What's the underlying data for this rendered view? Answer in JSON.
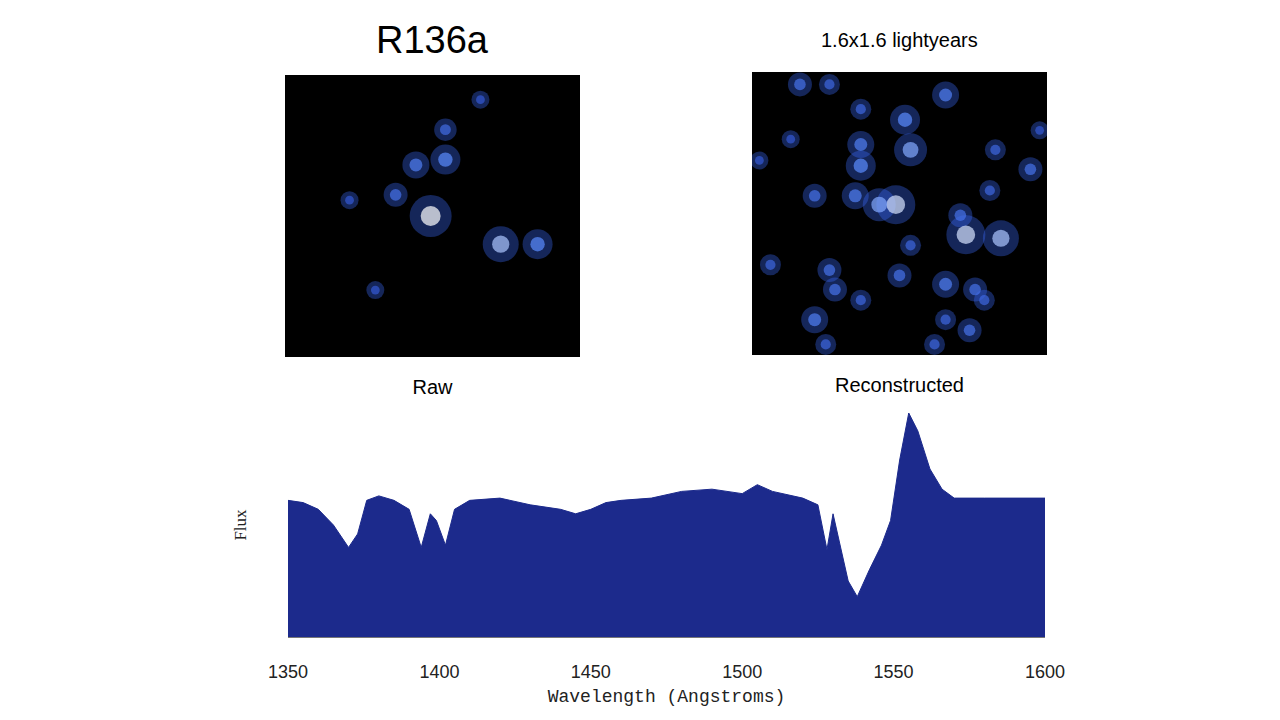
{
  "chart_data": [
    {
      "type": "scatter",
      "title": "R136a",
      "x_label": "Raw",
      "x": [
        0.79,
        0.87,
        0.71,
        1.17,
        1.37,
        0.87,
        0.6,
        0.49,
        1.06,
        0.35
      ],
      "y": [
        0.8,
        1.12,
        1.09,
        0.64,
        0.64,
        1.29,
        0.92,
        0.38,
        1.46,
        0.89
      ],
      "brightness": [
        1.0,
        0.6,
        0.5,
        0.8,
        0.6,
        0.35,
        0.4,
        0.2,
        0.2,
        0.2
      ],
      "color": "#3b6cff",
      "xlim": [
        0,
        1.6
      ],
      "ylim": [
        0,
        1.6
      ],
      "tick_labels": false
    },
    {
      "type": "scatter",
      "title": "1.6x1.6 lightyears",
      "x_label": "Reconstructed",
      "x": [
        0.83,
        1.05,
        0.26,
        0.42,
        0.86,
        0.59,
        0.59,
        0.78,
        0.69,
        0.56,
        0.34,
        1.16,
        1.35,
        1.13,
        1.32,
        1.51,
        1.29,
        0.8,
        1.05,
        1.21,
        1.26,
        0.42,
        0.45,
        0.34,
        0.4,
        0.59,
        1.05,
        1.18,
        0.99,
        0.1,
        0.04,
        1.56,
        0.59,
        0.21,
        0.86
      ],
      "y": [
        1.33,
        1.47,
        1.53,
        1.53,
        1.16,
        1.19,
        1.07,
        0.85,
        0.85,
        0.9,
        0.9,
        0.68,
        0.66,
        0.79,
        1.16,
        1.05,
        0.93,
        0.45,
        0.4,
        0.37,
        0.31,
        0.48,
        0.37,
        0.2,
        0.06,
        0.31,
        0.2,
        0.14,
        0.06,
        0.51,
        1.1,
        1.27,
        1.39,
        1.22,
        0.62
      ],
      "brightness": [
        0.6,
        0.5,
        0.4,
        0.3,
        0.7,
        0.5,
        0.6,
        0.9,
        0.7,
        0.5,
        0.4,
        0.9,
        0.8,
        0.4,
        0.3,
        0.4,
        0.3,
        0.4,
        0.5,
        0.4,
        0.3,
        0.4,
        0.4,
        0.5,
        0.3,
        0.3,
        0.3,
        0.4,
        0.3,
        0.3,
        0.2,
        0.2,
        0.3,
        0.2,
        0.3
      ],
      "color": "#3b6cff",
      "xlim": [
        0,
        1.6
      ],
      "ylim": [
        0,
        1.6
      ],
      "tick_labels": false
    },
    {
      "type": "area",
      "x_label": "Wavelength (Angstroms)",
      "y_label": "Flux",
      "x": [
        1350,
        1355,
        1360,
        1365,
        1370,
        1373,
        1376,
        1380,
        1385,
        1390,
        1394,
        1397,
        1399,
        1402,
        1405,
        1410,
        1420,
        1430,
        1440,
        1445,
        1450,
        1455,
        1460,
        1470,
        1480,
        1490,
        1500,
        1505,
        1510,
        1520,
        1525,
        1528,
        1530,
        1532,
        1535,
        1538,
        1542,
        1546,
        1549,
        1552,
        1555,
        1558,
        1562,
        1566,
        1570,
        1580,
        1590,
        1600
      ],
      "values": [
        61,
        60,
        57,
        50,
        40,
        46,
        61,
        63,
        61,
        57,
        40,
        55,
        52,
        41,
        57,
        61,
        62,
        59,
        57,
        55,
        57,
        60,
        61,
        62,
        65,
        66,
        64,
        68,
        65,
        62,
        59,
        39,
        55,
        43,
        25,
        18,
        30,
        41,
        52,
        79,
        100,
        92,
        75,
        66,
        62,
        62,
        62,
        62
      ],
      "color": "#1c2a8c",
      "xlim": [
        1350,
        1600
      ],
      "xticks": [
        1350,
        1400,
        1450,
        1500,
        1550,
        1600
      ],
      "ylim": [
        0,
        100
      ],
      "tick_labels": "x",
      "grid": false
    }
  ]
}
